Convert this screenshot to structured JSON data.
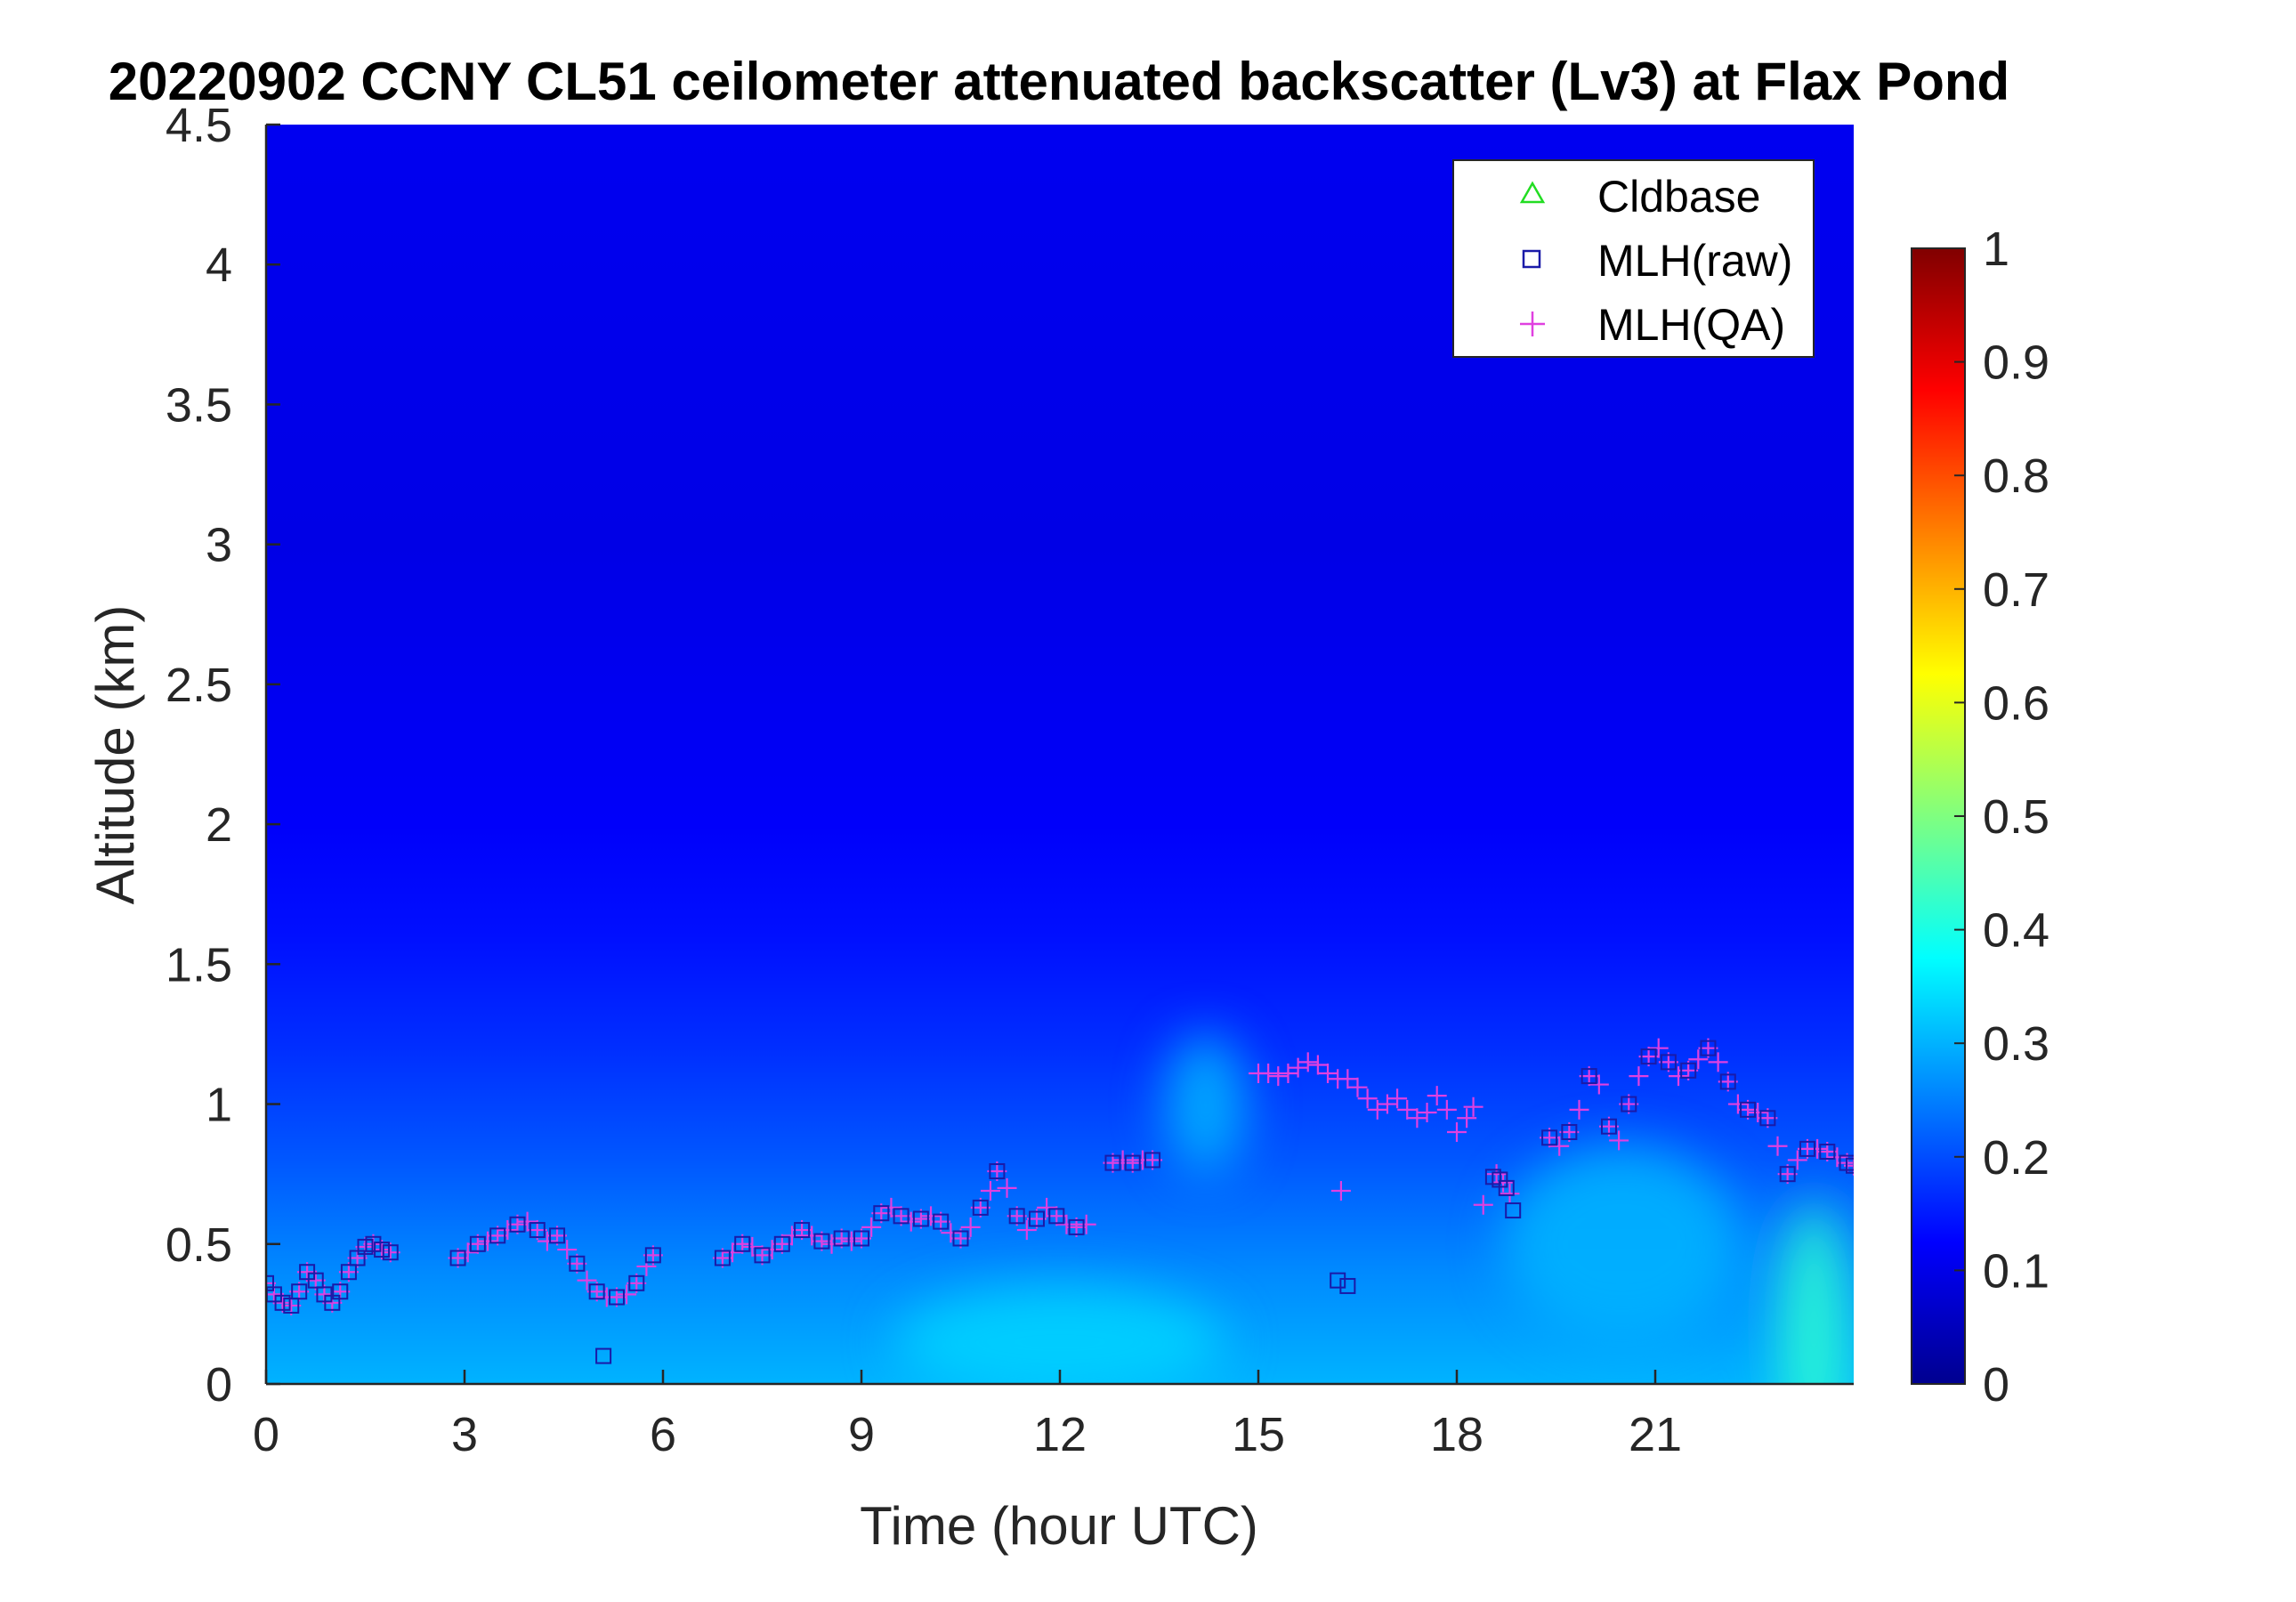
{
  "chart_data": {
    "type": "heatmap",
    "title": "20220902 CCNY CL51 ceilometer attenuated backscatter (Lv3) at Flax Pond",
    "xlabel": "Time (hour UTC)",
    "ylabel": "Altitude (km)",
    "xlim": [
      0,
      24
    ],
    "ylim": [
      0,
      4.5
    ],
    "xticks": [
      0,
      3,
      6,
      9,
      12,
      15,
      18,
      21
    ],
    "xtick_labels": [
      "0",
      "3",
      "6",
      "9",
      "12",
      "15",
      "18",
      "21"
    ],
    "yticks": [
      0,
      0.5,
      1,
      1.5,
      2,
      2.5,
      3,
      3.5,
      4,
      4.5
    ],
    "ytick_labels": [
      "0",
      "0.5",
      "1",
      "1.5",
      "2",
      "2.5",
      "3",
      "3.5",
      "4",
      "4.5"
    ],
    "colorbar": {
      "colormap": "jet",
      "clim": [
        0,
        1
      ],
      "ticks": [
        0,
        0.1,
        0.2,
        0.3,
        0.4,
        0.5,
        0.6,
        0.7,
        0.8,
        0.9,
        1
      ],
      "tick_labels": [
        "0",
        "0.1",
        "0.2",
        "0.3",
        "0.4",
        "0.5",
        "0.6",
        "0.7",
        "0.8",
        "0.9",
        "1"
      ]
    },
    "legend": {
      "position": "top-right",
      "entries": [
        {
          "label": "Cldbase",
          "marker": "triangle",
          "color": "#22dd22"
        },
        {
          "label": "MLH(raw)",
          "marker": "square",
          "color": "#1a1aa8"
        },
        {
          "label": "MLH(QA)",
          "marker": "plus",
          "color": "#e040e0"
        }
      ]
    },
    "background_field": {
      "description_levels": "layer heights in km and backscatter values at 0-1 scale",
      "profile": [
        {
          "altitude": 0.0,
          "value": 0.3
        },
        {
          "altitude": 0.4,
          "value": 0.26
        },
        {
          "altitude": 0.8,
          "value": 0.21
        },
        {
          "altitude": 1.2,
          "value": 0.17
        },
        {
          "altitude": 1.6,
          "value": 0.14
        },
        {
          "altitude": 2.0,
          "value": 0.12
        },
        {
          "altitude": 3.0,
          "value": 0.1
        },
        {
          "altitude": 4.5,
          "value": 0.11
        }
      ],
      "hotspots": [
        {
          "x": 23.4,
          "y": 0.2,
          "rx": 0.5,
          "ry": 0.45,
          "value": 0.42
        },
        {
          "x": 14.2,
          "y": 1.0,
          "rx": 0.6,
          "ry": 0.25,
          "value": 0.3
        },
        {
          "x": 12.0,
          "y": 0.15,
          "rx": 2.5,
          "ry": 0.2,
          "value": 0.33
        },
        {
          "x": 20.5,
          "y": 0.5,
          "rx": 1.8,
          "ry": 0.35,
          "value": 0.3
        }
      ]
    },
    "series": [
      {
        "name": "MLH(QA)",
        "marker": "plus",
        "color": "#e040e0",
        "x": [
          0.0,
          0.12,
          0.25,
          0.38,
          0.5,
          0.62,
          0.75,
          0.88,
          1.0,
          1.12,
          1.25,
          1.38,
          1.5,
          1.62,
          1.75,
          1.88,
          2.9,
          3.05,
          3.2,
          3.35,
          3.5,
          3.65,
          3.8,
          3.95,
          4.1,
          4.25,
          4.4,
          4.55,
          4.7,
          4.85,
          5.0,
          5.15,
          5.3,
          5.45,
          5.6,
          5.75,
          5.85,
          6.9,
          7.05,
          7.2,
          7.35,
          7.5,
          7.65,
          7.8,
          7.95,
          8.1,
          8.25,
          8.4,
          8.55,
          8.7,
          8.85,
          9.0,
          9.15,
          9.3,
          9.45,
          9.6,
          9.75,
          9.9,
          10.05,
          10.2,
          10.35,
          10.5,
          10.65,
          10.8,
          10.95,
          11.05,
          11.2,
          11.35,
          11.5,
          11.65,
          11.8,
          11.95,
          12.1,
          12.25,
          12.4,
          12.8,
          12.95,
          13.1,
          13.25,
          13.4,
          15.0,
          15.15,
          15.3,
          15.45,
          15.6,
          15.75,
          15.9,
          16.05,
          16.2,
          16.35,
          16.5,
          16.65,
          16.8,
          16.95,
          17.1,
          17.25,
          17.4,
          17.55,
          17.7,
          17.85,
          18.0,
          18.15,
          18.25,
          18.6,
          18.7,
          18.8,
          19.4,
          19.55,
          19.7,
          19.85,
          20.0,
          20.15,
          20.3,
          20.45,
          20.6,
          20.75,
          20.9,
          21.05,
          21.2,
          21.35,
          21.5,
          21.65,
          21.8,
          21.95,
          22.1,
          22.25,
          22.4,
          22.55,
          22.7,
          22.85,
          23.0,
          23.15,
          23.3,
          23.45,
          23.6,
          23.75,
          23.9,
          24.0,
          16.25,
          18.4
        ],
        "y": [
          0.36,
          0.32,
          0.29,
          0.28,
          0.33,
          0.4,
          0.37,
          0.32,
          0.29,
          0.33,
          0.4,
          0.45,
          0.49,
          0.5,
          0.48,
          0.47,
          0.45,
          0.47,
          0.5,
          0.51,
          0.53,
          0.55,
          0.57,
          0.58,
          0.55,
          0.51,
          0.53,
          0.48,
          0.43,
          0.37,
          0.33,
          0.31,
          0.31,
          0.32,
          0.36,
          0.42,
          0.46,
          0.45,
          0.47,
          0.5,
          0.49,
          0.46,
          0.48,
          0.5,
          0.53,
          0.55,
          0.53,
          0.51,
          0.5,
          0.52,
          0.51,
          0.52,
          0.56,
          0.61,
          0.63,
          0.6,
          0.58,
          0.59,
          0.6,
          0.58,
          0.54,
          0.52,
          0.56,
          0.63,
          0.69,
          0.76,
          0.7,
          0.6,
          0.55,
          0.59,
          0.63,
          0.6,
          0.57,
          0.56,
          0.57,
          0.79,
          0.8,
          0.79,
          0.8,
          0.8,
          1.11,
          1.11,
          1.1,
          1.11,
          1.13,
          1.15,
          1.14,
          1.11,
          1.09,
          1.09,
          1.06,
          1.02,
          0.98,
          1.0,
          1.02,
          0.98,
          0.95,
          0.97,
          1.03,
          0.98,
          0.9,
          0.95,
          0.99,
          0.75,
          0.72,
          0.68,
          0.88,
          0.85,
          0.9,
          0.98,
          1.1,
          1.07,
          0.92,
          0.87,
          1.0,
          1.1,
          1.17,
          1.2,
          1.15,
          1.1,
          1.12,
          1.16,
          1.2,
          1.15,
          1.08,
          1.0,
          0.98,
          0.97,
          0.95,
          0.85,
          0.75,
          0.8,
          0.84,
          0.84,
          0.83,
          0.81,
          0.79,
          0.78,
          0.69,
          0.64
        ]
      },
      {
        "name": "MLH(raw)",
        "marker": "square",
        "color": "#1a1aa8",
        "x": [
          0.0,
          0.12,
          0.25,
          0.38,
          0.5,
          0.62,
          0.75,
          0.88,
          1.0,
          1.12,
          1.25,
          1.38,
          1.5,
          1.62,
          1.75,
          1.88,
          2.9,
          3.2,
          3.5,
          3.8,
          4.1,
          4.4,
          4.7,
          5.0,
          5.3,
          5.6,
          5.85,
          5.1,
          6.9,
          7.2,
          7.5,
          7.8,
          8.1,
          8.4,
          8.7,
          9.0,
          9.3,
          9.6,
          9.9,
          10.2,
          10.5,
          10.8,
          11.05,
          11.35,
          11.65,
          11.95,
          12.25,
          12.8,
          13.1,
          13.4,
          16.2,
          16.35,
          18.55,
          18.65,
          18.75,
          18.85,
          19.4,
          19.7,
          20.0,
          20.3,
          20.6,
          20.9,
          21.2,
          21.5,
          21.8,
          22.1,
          22.4,
          22.7,
          23.0,
          23.3,
          23.6,
          23.9,
          24.0
        ],
        "y": [
          0.36,
          0.32,
          0.29,
          0.28,
          0.33,
          0.4,
          0.37,
          0.32,
          0.29,
          0.33,
          0.4,
          0.45,
          0.49,
          0.5,
          0.48,
          0.47,
          0.45,
          0.5,
          0.53,
          0.57,
          0.55,
          0.53,
          0.43,
          0.33,
          0.31,
          0.36,
          0.46,
          0.1,
          0.45,
          0.5,
          0.46,
          0.5,
          0.55,
          0.51,
          0.52,
          0.52,
          0.61,
          0.6,
          0.59,
          0.58,
          0.52,
          0.63,
          0.76,
          0.6,
          0.59,
          0.6,
          0.56,
          0.79,
          0.79,
          0.8,
          0.37,
          0.35,
          0.74,
          0.73,
          0.7,
          0.62,
          0.88,
          0.9,
          1.1,
          0.92,
          1.0,
          1.17,
          1.15,
          1.12,
          1.2,
          1.08,
          0.98,
          0.95,
          0.75,
          0.84,
          0.83,
          0.79,
          0.78
        ]
      },
      {
        "name": "Cldbase",
        "marker": "triangle",
        "color": "#22dd22",
        "x": [],
        "y": []
      }
    ]
  }
}
